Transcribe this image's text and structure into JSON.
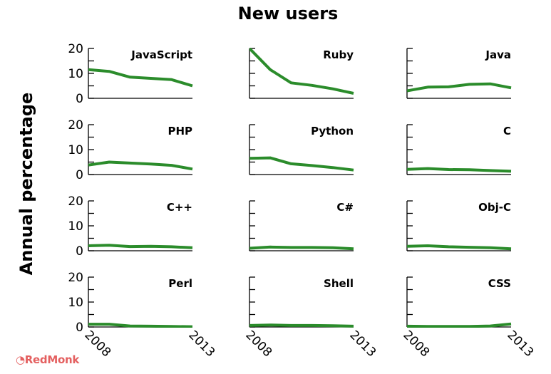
{
  "chart_data": {
    "type": "line",
    "title": "New users",
    "ylabel": "Annual percentage",
    "xlabel": "",
    "x": [
      2008,
      2009,
      2010,
      2011,
      2012,
      2013
    ],
    "x_tick_labels": [
      "2008",
      "2013"
    ],
    "y_tick_labels": [
      "0",
      "10",
      "20"
    ],
    "ylim": [
      0,
      20
    ],
    "xlim": [
      2008,
      2013
    ],
    "grid": false,
    "layout": "4x3 small multiples",
    "line_color": "#2b8c2b",
    "panels": [
      {
        "name": "JavaScript",
        "values": [
          11.5,
          10.8,
          8.5,
          8.0,
          7.5,
          5.0
        ]
      },
      {
        "name": "Ruby",
        "values": [
          20.0,
          11.5,
          6.2,
          5.2,
          3.8,
          2.0
        ]
      },
      {
        "name": "Java",
        "values": [
          3.0,
          4.5,
          4.6,
          5.6,
          5.8,
          4.2
        ]
      },
      {
        "name": "PHP",
        "values": [
          3.8,
          5.0,
          4.6,
          4.2,
          3.7,
          2.2
        ]
      },
      {
        "name": "Python",
        "values": [
          6.5,
          6.7,
          4.3,
          3.6,
          2.8,
          1.8
        ]
      },
      {
        "name": "C",
        "values": [
          2.1,
          2.4,
          2.0,
          1.9,
          1.6,
          1.3
        ]
      },
      {
        "name": "C++",
        "values": [
          2.0,
          2.2,
          1.7,
          1.8,
          1.6,
          1.2
        ]
      },
      {
        "name": "C#",
        "values": [
          1.0,
          1.5,
          1.3,
          1.3,
          1.2,
          0.8
        ]
      },
      {
        "name": "Obj-C",
        "values": [
          1.8,
          2.0,
          1.6,
          1.4,
          1.2,
          0.8
        ]
      },
      {
        "name": "Perl",
        "values": [
          1.1,
          1.1,
          0.4,
          0.3,
          0.2,
          0.1
        ]
      },
      {
        "name": "Shell",
        "values": [
          0.6,
          0.8,
          0.6,
          0.6,
          0.5,
          0.3
        ]
      },
      {
        "name": "CSS",
        "values": [
          0.3,
          0.2,
          0.2,
          0.2,
          0.4,
          1.2
        ]
      }
    ]
  },
  "branding": {
    "logo_text": "RedMonk"
  }
}
